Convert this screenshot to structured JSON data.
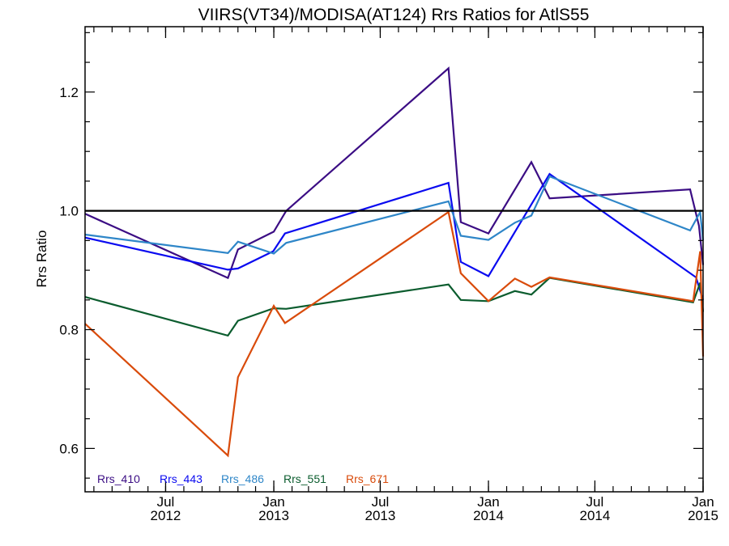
{
  "chart_data": {
    "type": "line",
    "title": "VIIRS(VT34)/MODISA(AT124)  Rrs Ratios for AtlS55",
    "xlabel": "",
    "ylabel": "Rrs Ratio",
    "xlim": [
      "2012-02-15",
      "2015-01-01"
    ],
    "ylim": [
      0.527,
      1.31
    ],
    "grid": false,
    "legend_position": "bottom-left",
    "reference_line": {
      "y": 1.0,
      "color": "#000000"
    },
    "x_ticks": [
      {
        "date": "2012-07-01",
        "month": "Jul",
        "year": "2012"
      },
      {
        "date": "2013-01-01",
        "month": "Jan",
        "year": "2013"
      },
      {
        "date": "2013-07-01",
        "month": "Jul",
        "year": "2013"
      },
      {
        "date": "2014-01-01",
        "month": "Jan",
        "year": "2014"
      },
      {
        "date": "2014-07-01",
        "month": "Jul",
        "year": "2014"
      },
      {
        "date": "2015-01-01",
        "month": "Jan",
        "year": "2015"
      }
    ],
    "y_ticks": [
      {
        "value": 0.6,
        "label": "0.6"
      },
      {
        "value": 0.8,
        "label": "0.8"
      },
      {
        "value": 1.0,
        "label": "1.0"
      },
      {
        "value": 1.2,
        "label": "1.2"
      }
    ],
    "series": [
      {
        "name": "Rrs_410",
        "color": "#3b0d84",
        "points": [
          [
            "2012-02-15",
            0.995
          ],
          [
            "2012-10-15",
            0.887
          ],
          [
            "2012-11-01",
            0.935
          ],
          [
            "2013-01-01",
            0.965
          ],
          [
            "2013-01-22",
            1.0
          ],
          [
            "2013-10-25",
            1.24
          ],
          [
            "2013-11-15",
            0.981
          ],
          [
            "2014-01-01",
            0.962
          ],
          [
            "2014-03-15",
            1.082
          ],
          [
            "2014-04-15",
            1.021
          ],
          [
            "2014-12-10",
            1.036
          ],
          [
            "2014-12-25",
            0.975
          ],
          [
            "2015-01-01",
            0.909
          ]
        ]
      },
      {
        "name": "Rrs_443",
        "color": "#0a0af0",
        "points": [
          [
            "2012-02-15",
            0.955
          ],
          [
            "2012-10-15",
            0.901
          ],
          [
            "2012-11-01",
            0.903
          ],
          [
            "2012-12-31",
            0.932
          ],
          [
            "2013-01-20",
            0.962
          ],
          [
            "2013-10-25",
            1.047
          ],
          [
            "2013-11-15",
            0.914
          ],
          [
            "2014-01-01",
            0.89
          ],
          [
            "2014-04-15",
            1.062
          ],
          [
            "2014-12-20",
            0.888
          ],
          [
            "2015-01-01",
            0.85
          ]
        ]
      },
      {
        "name": "Rrs_486",
        "color": "#2e86c8",
        "points": [
          [
            "2012-02-15",
            0.96
          ],
          [
            "2012-10-15",
            0.929
          ],
          [
            "2012-11-01",
            0.948
          ],
          [
            "2013-01-01",
            0.928
          ],
          [
            "2013-01-22",
            0.946
          ],
          [
            "2013-10-25",
            1.016
          ],
          [
            "2013-11-15",
            0.958
          ],
          [
            "2014-01-01",
            0.951
          ],
          [
            "2014-02-15",
            0.98
          ],
          [
            "2014-03-15",
            0.992
          ],
          [
            "2014-04-15",
            1.058
          ],
          [
            "2014-12-10",
            0.967
          ],
          [
            "2014-12-27",
            0.998
          ],
          [
            "2015-01-01",
            0.95
          ]
        ]
      },
      {
        "name": "Rrs_551",
        "color": "#0b5c2e",
        "points": [
          [
            "2012-02-15",
            0.855
          ],
          [
            "2012-10-15",
            0.79
          ],
          [
            "2012-11-01",
            0.815
          ],
          [
            "2013-01-01",
            0.836
          ],
          [
            "2013-01-22",
            0.835
          ],
          [
            "2013-10-25",
            0.876
          ],
          [
            "2013-11-15",
            0.85
          ],
          [
            "2014-01-01",
            0.848
          ],
          [
            "2014-02-15",
            0.865
          ],
          [
            "2014-03-15",
            0.859
          ],
          [
            "2014-04-15",
            0.887
          ],
          [
            "2014-12-15",
            0.846
          ],
          [
            "2014-12-27",
            0.879
          ],
          [
            "2015-01-01",
            0.83
          ]
        ]
      },
      {
        "name": "Rrs_671",
        "color": "#d94b0b",
        "points": [
          [
            "2012-02-15",
            0.81
          ],
          [
            "2012-10-15",
            0.588
          ],
          [
            "2012-11-01",
            0.72
          ],
          [
            "2013-01-01",
            0.84
          ],
          [
            "2013-01-20",
            0.811
          ],
          [
            "2013-10-25",
            0.998
          ],
          [
            "2013-11-15",
            0.895
          ],
          [
            "2014-01-01",
            0.848
          ],
          [
            "2014-02-15",
            0.886
          ],
          [
            "2014-03-15",
            0.872
          ],
          [
            "2014-04-15",
            0.888
          ],
          [
            "2014-12-15",
            0.848
          ],
          [
            "2014-12-27",
            0.932
          ],
          [
            "2015-01-01",
            0.755
          ]
        ]
      }
    ]
  }
}
